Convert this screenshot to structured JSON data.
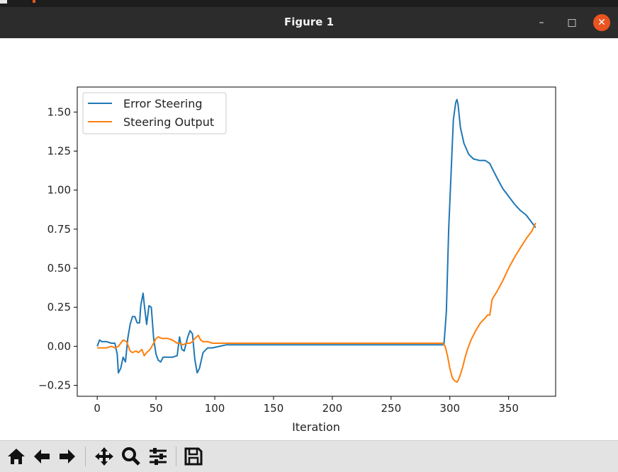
{
  "window": {
    "title": "Figure 1",
    "minimize_icon": "minimize-icon",
    "maximize_icon": "maximize-icon",
    "close_icon": "close-icon"
  },
  "toolbar": {
    "buttons": [
      "home-icon",
      "back-arrow-icon",
      "forward-arrow-icon",
      "pan-move-icon",
      "zoom-magnifier-icon",
      "configure-subplots-icon",
      "save-floppy-icon"
    ]
  },
  "colors": {
    "series1": "#1f77b4",
    "series2": "#ff7f0e",
    "titlebar": "#2c2c2c",
    "close": "#e95420"
  },
  "chart_data": {
    "type": "line",
    "xlabel": "Iteration",
    "ylabel": "",
    "xlim": [
      -17,
      390
    ],
    "ylim": [
      -0.32,
      1.66
    ],
    "xticks": [
      0,
      50,
      100,
      150,
      200,
      250,
      300,
      350
    ],
    "yticks": [
      -0.25,
      0.0,
      0.25,
      0.5,
      0.75,
      1.0,
      1.25,
      1.5
    ],
    "ytick_labels": [
      "−0.25",
      "0.00",
      "0.25",
      "0.50",
      "0.75",
      "1.00",
      "1.25",
      "1.50"
    ],
    "legend_position": "top-left",
    "grid": false,
    "series": [
      {
        "name": "Error Steering",
        "x": [
          0,
          2,
          4,
          8,
          12,
          15,
          17,
          18,
          20,
          22,
          24,
          26,
          28,
          30,
          32,
          34,
          36,
          37,
          39,
          40,
          42,
          44,
          46,
          48,
          50,
          52,
          54,
          56,
          60,
          64,
          68,
          70,
          72,
          74,
          77,
          79,
          81,
          83,
          85,
          87,
          90,
          94,
          98,
          104,
          110,
          120,
          130,
          150,
          200,
          250,
          280,
          295,
          297,
          299,
          301,
          303,
          305,
          306,
          307,
          309,
          312,
          316,
          320,
          325,
          330,
          334,
          336,
          340,
          345,
          350,
          355,
          360,
          365,
          370,
          373
        ],
        "y": [
          0.0,
          0.04,
          0.03,
          0.03,
          0.02,
          0.02,
          -0.05,
          -0.17,
          -0.14,
          -0.07,
          -0.1,
          0.05,
          0.14,
          0.19,
          0.19,
          0.15,
          0.15,
          0.26,
          0.34,
          0.27,
          0.14,
          0.26,
          0.25,
          0.05,
          -0.05,
          -0.09,
          -0.1,
          -0.07,
          -0.07,
          -0.07,
          -0.06,
          0.06,
          -0.02,
          -0.03,
          0.06,
          0.1,
          0.08,
          -0.08,
          -0.17,
          -0.14,
          -0.04,
          -0.01,
          -0.01,
          0.0,
          0.01,
          0.01,
          0.01,
          0.01,
          0.01,
          0.01,
          0.01,
          0.01,
          0.22,
          0.75,
          1.1,
          1.45,
          1.56,
          1.58,
          1.55,
          1.4,
          1.3,
          1.23,
          1.2,
          1.19,
          1.19,
          1.17,
          1.14,
          1.08,
          1.01,
          0.96,
          0.91,
          0.87,
          0.84,
          0.79,
          0.76
        ]
      },
      {
        "name": "Steering Output",
        "x": [
          0,
          4,
          8,
          12,
          15,
          18,
          20,
          22,
          25,
          28,
          30,
          33,
          35,
          38,
          40,
          42,
          45,
          48,
          50,
          52,
          55,
          58,
          60,
          64,
          68,
          70,
          73,
          76,
          79,
          81,
          83,
          86,
          88,
          90,
          94,
          98,
          102,
          110,
          130,
          160,
          200,
          250,
          280,
          294,
          296,
          298,
          300,
          302,
          304,
          306,
          307,
          309,
          311,
          313,
          315,
          318,
          322,
          326,
          330,
          332,
          334,
          336,
          340,
          345,
          350,
          355,
          360,
          365,
          370,
          373
        ],
        "y": [
          -0.01,
          -0.01,
          -0.01,
          0.0,
          -0.01,
          -0.0,
          0.02,
          0.04,
          0.03,
          -0.03,
          -0.04,
          -0.03,
          -0.04,
          -0.02,
          -0.06,
          -0.04,
          -0.02,
          0.02,
          0.05,
          0.06,
          0.05,
          0.05,
          0.05,
          0.04,
          0.02,
          0.02,
          0.01,
          0.02,
          0.02,
          0.03,
          0.05,
          0.07,
          0.04,
          0.03,
          0.03,
          0.02,
          0.02,
          0.02,
          0.02,
          0.02,
          0.02,
          0.02,
          0.02,
          0.02,
          0.0,
          -0.06,
          -0.14,
          -0.2,
          -0.22,
          -0.23,
          -0.22,
          -0.18,
          -0.13,
          -0.07,
          -0.02,
          0.04,
          0.1,
          0.15,
          0.18,
          0.2,
          0.2,
          0.3,
          0.35,
          0.42,
          0.5,
          0.57,
          0.63,
          0.69,
          0.74,
          0.79
        ]
      }
    ]
  }
}
